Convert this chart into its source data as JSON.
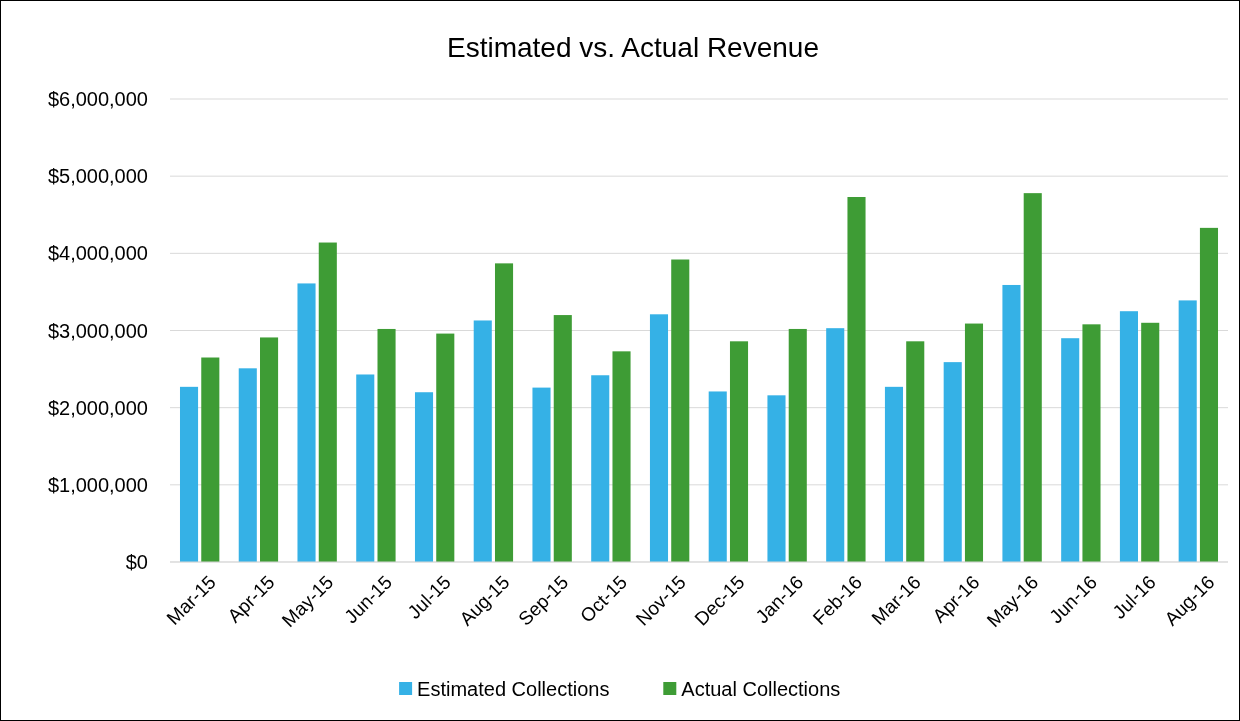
{
  "chart_data": {
    "type": "bar",
    "title": "Estimated vs. Actual Revenue",
    "categories": [
      "Mar-15",
      "Apr-15",
      "May-15",
      "Jun-15",
      "Jul-15",
      "Aug-15",
      "Sep-15",
      "Oct-15",
      "Nov-15",
      "Dec-15",
      "Jan-16",
      "Feb-16",
      "Mar-16",
      "Apr-16",
      "May-16",
      "Jun-16",
      "Jul-16",
      "Aug-16"
    ],
    "series": [
      {
        "name": "Estimated Collections",
        "color": "#35b1e6",
        "values": [
          2270000,
          2510000,
          3610000,
          2430000,
          2200000,
          3130000,
          2260000,
          2420000,
          3210000,
          2210000,
          2160000,
          3030000,
          2270000,
          2590000,
          3590000,
          2900000,
          3250000,
          3390000
        ]
      },
      {
        "name": "Actual Collections",
        "color": "#3e9c35",
        "values": [
          2650000,
          2910000,
          4140000,
          3020000,
          2960000,
          3870000,
          3200000,
          2730000,
          3920000,
          2860000,
          3020000,
          4730000,
          2860000,
          3090000,
          4780000,
          3080000,
          3100000,
          4330000
        ]
      }
    ],
    "ylim": [
      0,
      6000000
    ],
    "yticks": [
      {
        "value": 0,
        "label": "$0"
      },
      {
        "value": 1000000,
        "label": "$1,000,000"
      },
      {
        "value": 2000000,
        "label": "$2,000,000"
      },
      {
        "value": 3000000,
        "label": "$3,000,000"
      },
      {
        "value": 4000000,
        "label": "$4,000,000"
      },
      {
        "value": 5000000,
        "label": "$5,000,000"
      },
      {
        "value": 6000000,
        "label": "$6,000,000"
      }
    ],
    "grid": "y",
    "legend": "bottom"
  }
}
